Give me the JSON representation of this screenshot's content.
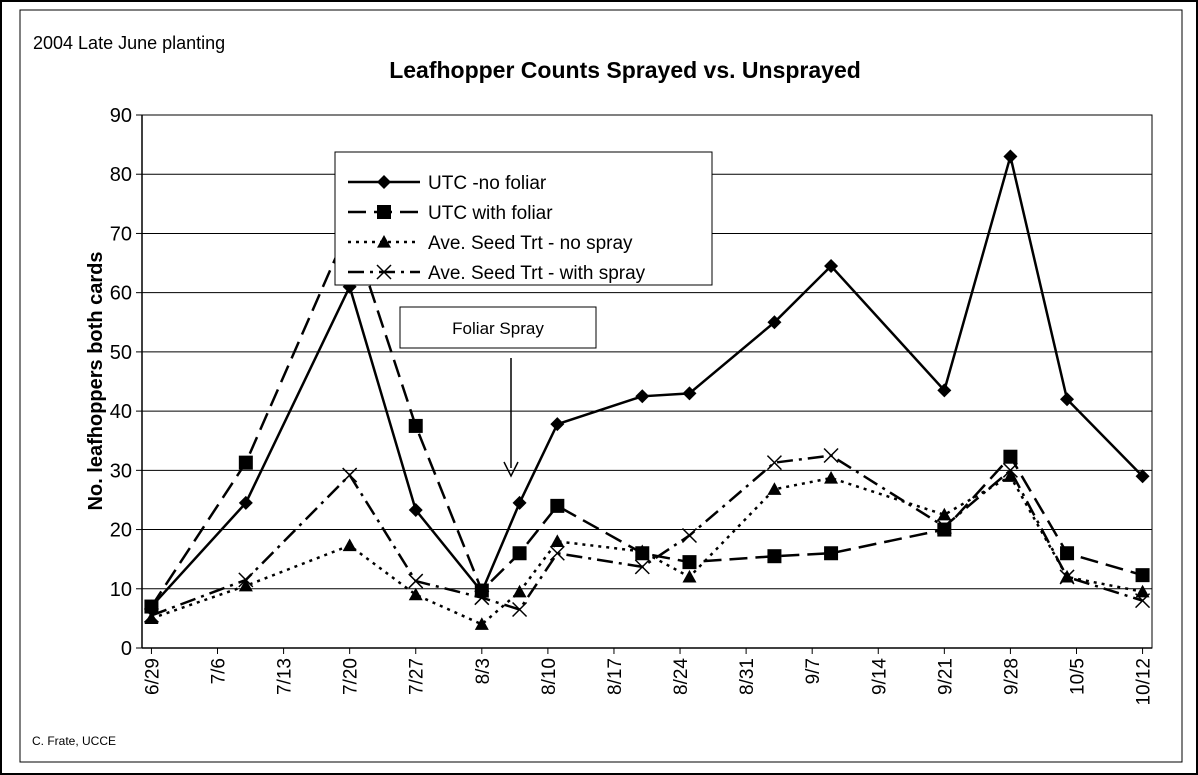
{
  "chart_data": {
    "type": "line",
    "title": "Leafhopper Counts Sprayed vs. Unsprayed",
    "subtitle": "2004 Late June planting",
    "ylabel": "No. leafhoppers both cards",
    "credit": "C. Frate, UCCE",
    "annotation": "Foliar Spray",
    "x": [
      181,
      191,
      202,
      209,
      216,
      220,
      224,
      233,
      238,
      247,
      253,
      265,
      272,
      278,
      286
    ],
    "xlim": [
      180,
      287
    ],
    "xticks": [
      {
        "value": 181,
        "label": "6/29"
      },
      {
        "value": 188,
        "label": "7/6"
      },
      {
        "value": 195,
        "label": "7/13"
      },
      {
        "value": 202,
        "label": "7/20"
      },
      {
        "value": 209,
        "label": "7/27"
      },
      {
        "value": 216,
        "label": "8/3"
      },
      {
        "value": 223,
        "label": "8/10"
      },
      {
        "value": 230,
        "label": "8/17"
      },
      {
        "value": 237,
        "label": "8/24"
      },
      {
        "value": 244,
        "label": "8/31"
      },
      {
        "value": 251,
        "label": "9/7"
      },
      {
        "value": 258,
        "label": "9/14"
      },
      {
        "value": 265,
        "label": "9/21"
      },
      {
        "value": 272,
        "label": "9/28"
      },
      {
        "value": 279,
        "label": "10/5"
      },
      {
        "value": 286,
        "label": "10/12"
      }
    ],
    "ylim": [
      0,
      90
    ],
    "yticks": [
      0,
      10,
      20,
      30,
      40,
      50,
      60,
      70,
      80,
      90
    ],
    "grid": true,
    "series": [
      {
        "name": "UTC -no foliar",
        "color": "#000000",
        "marker": "diamond",
        "line_style": "solid",
        "values": [
          7,
          24.5,
          61,
          23.3,
          9.5,
          24.5,
          37.8,
          42.5,
          43,
          55,
          64.5,
          43.5,
          83,
          42,
          29
        ]
      },
      {
        "name": "UTC with foliar",
        "color": "#000000",
        "marker": "square",
        "line_style": "dashed",
        "values": [
          7,
          31.3,
          71.3,
          37.5,
          9.7,
          16,
          24,
          16,
          14.5,
          15.5,
          16,
          20,
          32.3,
          16,
          12.3
        ]
      },
      {
        "name": "Ave. Seed Trt - no spray",
        "color": "#000000",
        "marker": "triangle",
        "line_style": "dotted",
        "values": [
          5,
          10.5,
          17.3,
          9,
          4,
          9.5,
          18,
          16.3,
          12,
          26.8,
          28.7,
          22.5,
          29,
          12,
          9.5
        ]
      },
      {
        "name": "Ave. Seed Trt - with spray",
        "color": "#000000",
        "marker": "x",
        "line_style": "dashdot",
        "values": [
          5.5,
          11.5,
          29.2,
          11.3,
          8.5,
          6.5,
          16,
          13.7,
          19,
          31.3,
          32.5,
          20.5,
          30,
          12,
          8
        ]
      }
    ]
  }
}
